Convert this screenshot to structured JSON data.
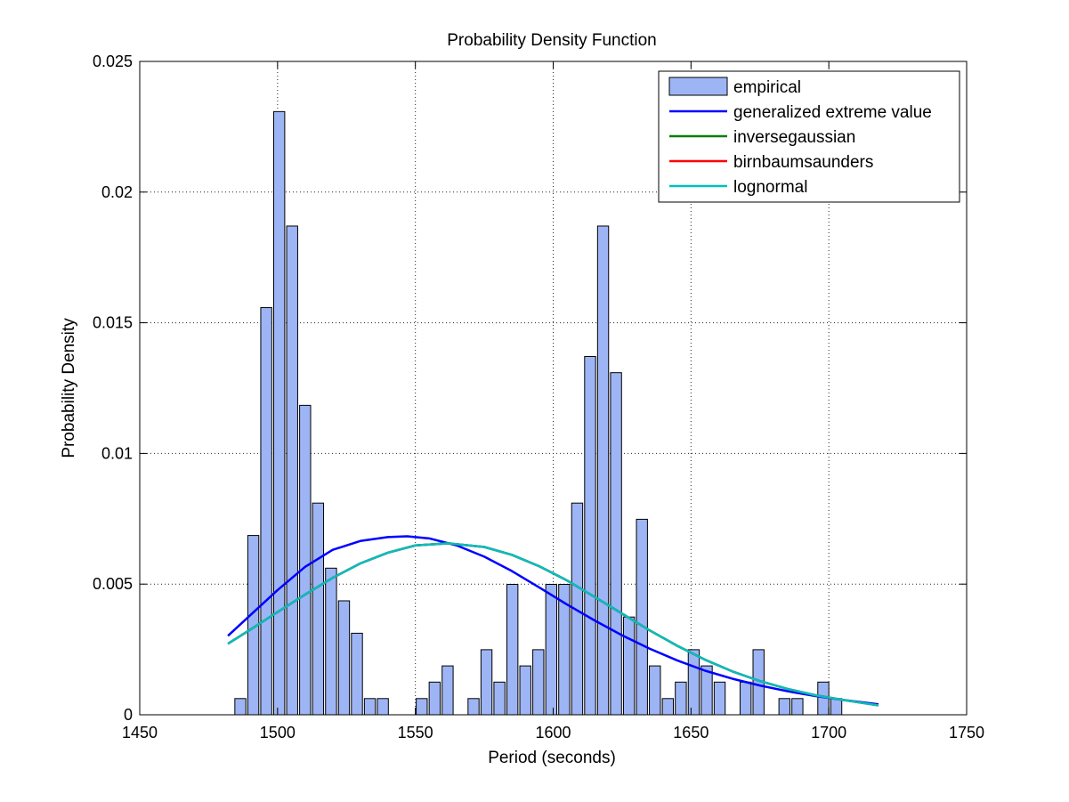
{
  "chart_data": {
    "type": "bar",
    "title": "Probability Density Function",
    "xlabel": "Period (seconds)",
    "ylabel": "Probability Density",
    "xlim": [
      1450,
      1750
    ],
    "ylim": [
      0,
      0.025
    ],
    "x_ticks": [
      1450,
      1500,
      1550,
      1600,
      1650,
      1700,
      1750
    ],
    "x_tick_labels": [
      "1450",
      "1500",
      "1550",
      "1600",
      "1650",
      "1700",
      "1750"
    ],
    "y_ticks": [
      0,
      0.005,
      0.01,
      0.015,
      0.02,
      0.025
    ],
    "y_tick_labels": [
      "0",
      "0.005",
      "0.01",
      "0.015",
      "0.02",
      "0.025"
    ],
    "grid": true,
    "legend_position": "top-right",
    "bar_width": 4.0,
    "bars": {
      "name": "empirical",
      "color": "#9eb5f5",
      "x": [
        1486.5,
        1491.2,
        1495.9,
        1500.6,
        1505.3,
        1510.0,
        1514.7,
        1519.4,
        1524.1,
        1528.8,
        1533.5,
        1538.2,
        1542.9,
        1547.6,
        1552.3,
        1557.0,
        1561.7,
        1566.4,
        1571.1,
        1575.8,
        1580.5,
        1585.2,
        1589.9,
        1594.6,
        1599.3,
        1604.0,
        1608.7,
        1613.4,
        1618.1,
        1622.8,
        1627.5,
        1632.2,
        1636.9,
        1641.6,
        1646.3,
        1651.0,
        1655.7,
        1660.4,
        1665.1,
        1669.8,
        1674.5,
        1679.2,
        1683.9,
        1688.6,
        1693.3,
        1698.0,
        1702.7,
        1707.4,
        1712.1
      ],
      "values": [
        0.00062,
        0.00686,
        0.01558,
        0.02308,
        0.0187,
        0.01184,
        0.0081,
        0.00561,
        0.00436,
        0.00312,
        0.00062,
        0.00062,
        0,
        0,
        0.00062,
        0.00125,
        0.00187,
        0,
        0.00062,
        0.00249,
        0.00125,
        0.00499,
        0.00187,
        0.00249,
        0.00499,
        0.00499,
        0.0081,
        0.01371,
        0.0187,
        0.01309,
        0.00374,
        0.00748,
        0.00187,
        0.00062,
        0.00125,
        0.00249,
        0.00187,
        0.00125,
        0,
        0.00125,
        0.00249,
        0,
        0.00062,
        0.00062,
        0,
        0.00125,
        0.00062,
        0,
        0
      ]
    },
    "series": [
      {
        "name": "generalized extreme value",
        "color": "#0000ff",
        "x": [
          1482,
          1490,
          1500,
          1510,
          1520,
          1530,
          1540,
          1547,
          1555,
          1565,
          1575,
          1585,
          1595,
          1605,
          1615,
          1625,
          1635,
          1645,
          1655,
          1665,
          1675,
          1685,
          1695,
          1705,
          1718
        ],
        "y": [
          0.00302,
          0.0038,
          0.00477,
          0.00566,
          0.00631,
          0.00665,
          0.0068,
          0.00683,
          0.00675,
          0.00648,
          0.00605,
          0.0055,
          0.00487,
          0.00422,
          0.00361,
          0.00304,
          0.00253,
          0.00208,
          0.00169,
          0.00138,
          0.00112,
          0.0009,
          0.00072,
          0.00057,
          0.0004
        ]
      },
      {
        "name": "inversegaussian",
        "color": "#008000",
        "x": [
          1482,
          1490,
          1500,
          1510,
          1520,
          1530,
          1540,
          1550,
          1562,
          1575,
          1585,
          1595,
          1605,
          1615,
          1625,
          1635,
          1645,
          1655,
          1665,
          1675,
          1685,
          1695,
          1705,
          1718
        ],
        "y": [
          0.00272,
          0.00325,
          0.00393,
          0.0046,
          0.00524,
          0.00579,
          0.0062,
          0.00648,
          0.00656,
          0.00642,
          0.00612,
          0.00568,
          0.00514,
          0.00451,
          0.00387,
          0.00323,
          0.00264,
          0.00211,
          0.00166,
          0.00129,
          0.00099,
          0.00075,
          0.00057,
          0.00036
        ]
      },
      {
        "name": "birnbaumsaunders",
        "color": "#ff0000",
        "x": [
          1482,
          1490,
          1500,
          1510,
          1520,
          1530,
          1540,
          1550,
          1562,
          1575,
          1585,
          1595,
          1605,
          1615,
          1625,
          1635,
          1645,
          1655,
          1665,
          1675,
          1685,
          1695,
          1705,
          1718
        ],
        "y": [
          0.00272,
          0.00325,
          0.00393,
          0.0046,
          0.00524,
          0.00579,
          0.0062,
          0.00648,
          0.00656,
          0.00642,
          0.00612,
          0.00568,
          0.00514,
          0.00451,
          0.00387,
          0.00323,
          0.00264,
          0.00211,
          0.00166,
          0.00129,
          0.00099,
          0.00075,
          0.00057,
          0.00036
        ]
      },
      {
        "name": "lognormal",
        "color": "#00bfbf",
        "x": [
          1482,
          1490,
          1500,
          1510,
          1520,
          1530,
          1540,
          1550,
          1562,
          1575,
          1585,
          1595,
          1605,
          1615,
          1625,
          1635,
          1645,
          1655,
          1665,
          1675,
          1685,
          1695,
          1705,
          1718
        ],
        "y": [
          0.00272,
          0.00325,
          0.00393,
          0.0046,
          0.00524,
          0.00579,
          0.0062,
          0.00648,
          0.00656,
          0.00642,
          0.00612,
          0.00568,
          0.00514,
          0.00451,
          0.00387,
          0.00323,
          0.00264,
          0.00211,
          0.00166,
          0.00129,
          0.00099,
          0.00075,
          0.00057,
          0.00036
        ]
      }
    ]
  }
}
